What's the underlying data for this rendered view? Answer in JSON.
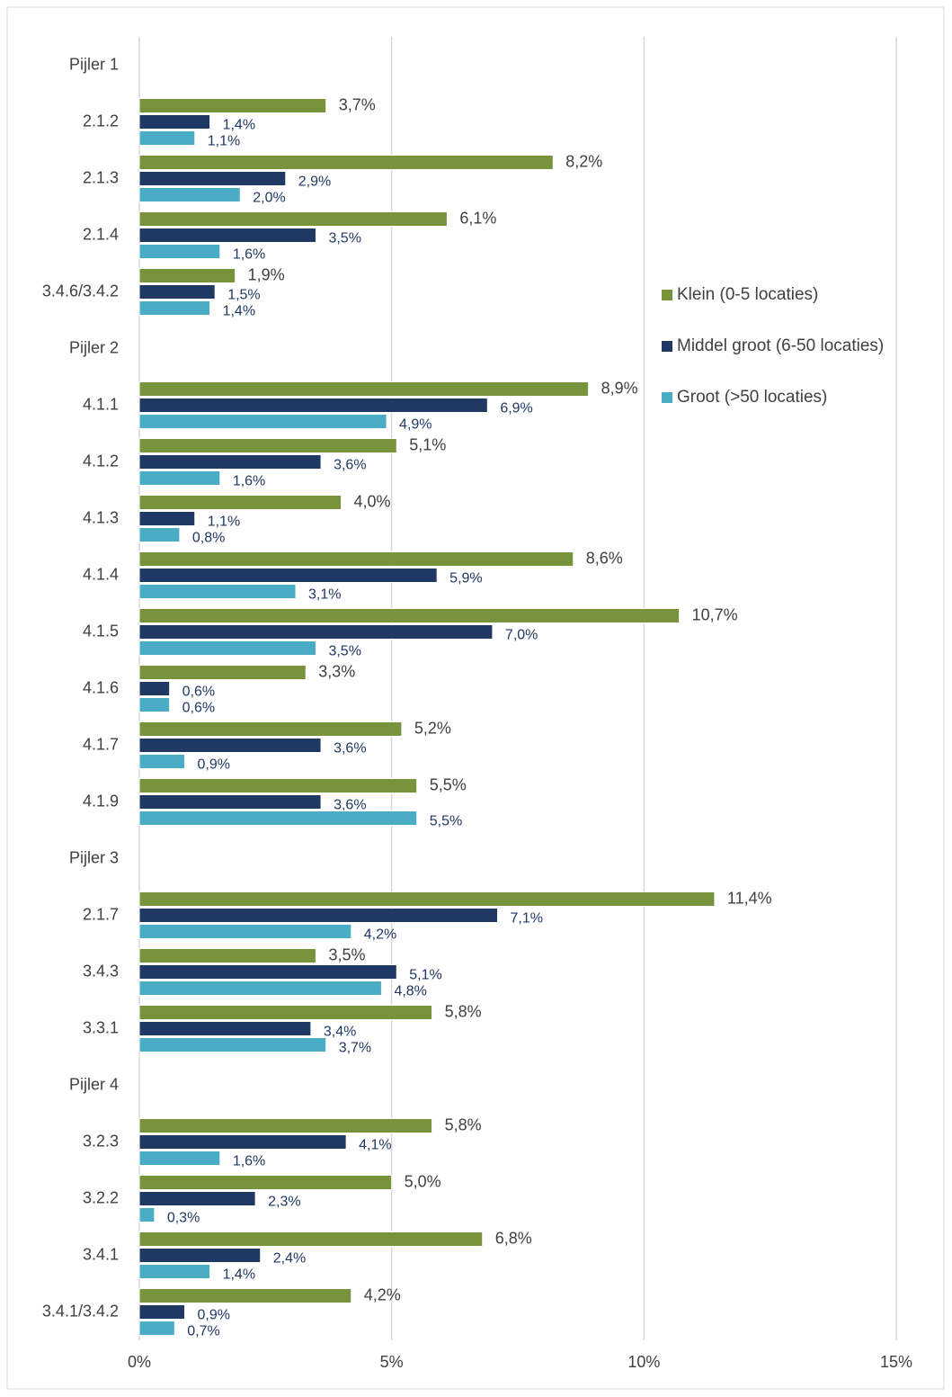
{
  "chart_data": {
    "type": "hbar",
    "categories": [
      "Pijler 1",
      "2.1.2",
      "2.1.3",
      "2.1.4",
      "3.4.6/3.4.2",
      "Pijler 2",
      "4.1.1",
      "4.1.2",
      "4.1.3",
      "4.1.4",
      "4.1.5",
      "4.1.6",
      "4.1.7",
      "4.1.9",
      "Pijler 3",
      "2.1.7",
      "3.4.3",
      "3.3.1",
      "Pijler 4",
      "3.2.3",
      "3.2.2",
      "3.4.1",
      "3.4.1/3.4.2"
    ],
    "series": [
      {
        "name": "Klein (0-5 locaties)",
        "color": "#77933c",
        "values": [
          null,
          3.7,
          8.2,
          6.1,
          1.9,
          null,
          8.9,
          5.1,
          4.0,
          8.6,
          10.7,
          3.3,
          5.2,
          5.5,
          null,
          11.4,
          3.5,
          5.8,
          null,
          5.8,
          5.0,
          6.8,
          4.2
        ],
        "value_labels": [
          null,
          "3,7%",
          "8,2%",
          "6,1%",
          "1,9%",
          null,
          "8,9%",
          "5,1%",
          "4,0%",
          "8,6%",
          "10,7%",
          "3,3%",
          "5,2%",
          "5,5%",
          null,
          "11,4%",
          "3,5%",
          "5,8%",
          null,
          "5,8%",
          "5,0%",
          "6,8%",
          "4,2%"
        ]
      },
      {
        "name": "Middel groot (6-50 locaties)",
        "color": "#1f3864",
        "values": [
          null,
          1.4,
          2.9,
          3.5,
          1.5,
          null,
          6.9,
          3.6,
          1.1,
          5.9,
          7.0,
          0.6,
          3.6,
          3.6,
          null,
          7.1,
          5.1,
          3.4,
          null,
          4.1,
          2.3,
          2.4,
          0.9
        ],
        "value_labels": [
          null,
          "1,4%",
          "2,9%",
          "3,5%",
          "1,5%",
          null,
          "6,9%",
          "3,6%",
          "1,1%",
          "5,9%",
          "7,0%",
          "0,6%",
          "3,6%",
          "3,6%",
          null,
          "7,1%",
          "5,1%",
          "3,4%",
          null,
          "4,1%",
          "2,3%",
          "2,4%",
          "0,9%"
        ]
      },
      {
        "name": "Groot (>50 locaties)",
        "color": "#4bacc6",
        "values": [
          null,
          1.1,
          2.0,
          1.6,
          1.4,
          null,
          4.9,
          1.6,
          0.8,
          3.1,
          3.5,
          0.6,
          0.9,
          5.5,
          null,
          4.2,
          4.8,
          3.7,
          null,
          1.6,
          0.3,
          1.4,
          0.7
        ],
        "value_labels": [
          null,
          "1,1%",
          "2,0%",
          "1,6%",
          "1,4%",
          null,
          "4,9%",
          "1,6%",
          "0,8%",
          "3,1%",
          "3,5%",
          "0,6%",
          "0,9%",
          "5,5%",
          null,
          "4,2%",
          "4,8%",
          "3,7%",
          null,
          "1,6%",
          "0,3%",
          "1,4%",
          "0,7%"
        ]
      }
    ],
    "xlim": [
      0,
      15
    ],
    "xticks": [
      {
        "value": 0,
        "label": "0%"
      },
      {
        "value": 5,
        "label": "5%"
      },
      {
        "value": 10,
        "label": "10%"
      },
      {
        "value": 15,
        "label": "15%"
      }
    ],
    "grid": true,
    "legend": "right"
  }
}
